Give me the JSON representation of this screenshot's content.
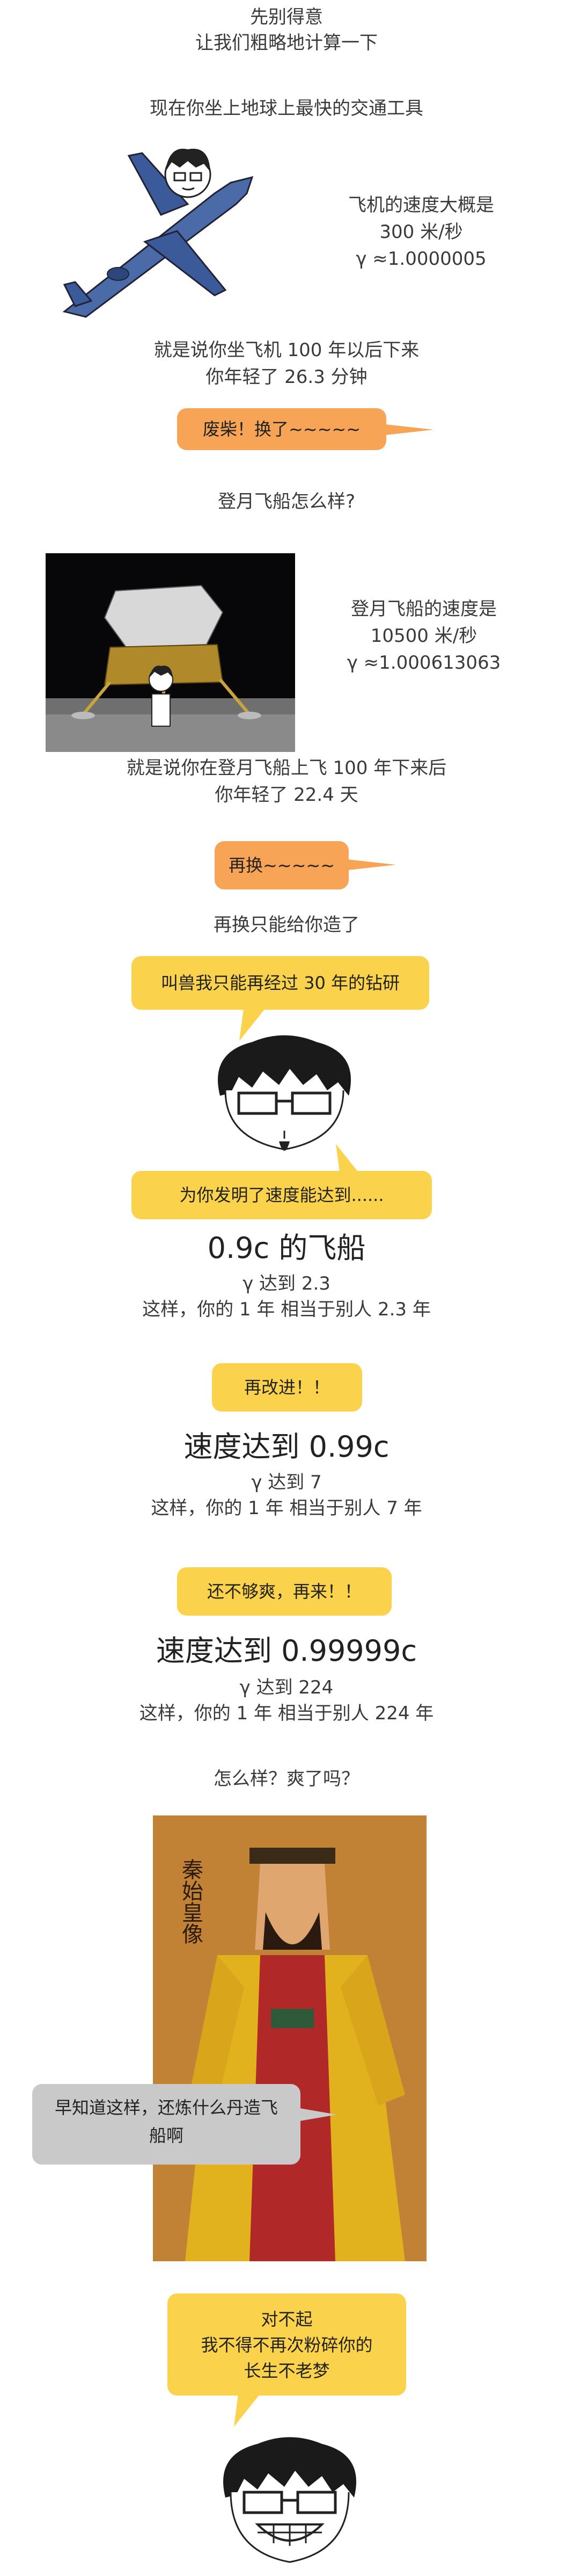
{
  "intro": [
    "先别得意",
    "让我们粗略地计算一下",
    "现在你坐上地球上最快的交通工具"
  ],
  "plane": {
    "speed_line1": "飞机的速度大概是",
    "speed_line2": "300 米/秒",
    "gamma": "γ ≈1.0000005",
    "result1": "就是说你坐飞机 100 年以后下来",
    "result2": "你年轻了 26.3 分钟",
    "bubble": "废柴！换了~~~~~"
  },
  "moon": {
    "question": "登月飞船怎么样?",
    "speed_line1": "登月飞船的速度是",
    "speed_line2": "10500 米/秒",
    "gamma": "γ ≈1.000613063",
    "result1": "就是说你在登月飞船上飞 100 年下来后",
    "result2": "你年轻了 22.4 天",
    "bubble": "再换~~~~~"
  },
  "custom": {
    "line": "再换只能给你造了",
    "bubble1": "叫兽我只能再经过 30 年的钻研",
    "bubble2": "为你发明了速度能达到......"
  },
  "ship1": {
    "title": "0.9c 的飞船",
    "gamma": "γ 达到 2.3",
    "desc": "这样，你的 1 年 相当于别人 2.3 年"
  },
  "improve": {
    "bubble": "再改进！！"
  },
  "ship2": {
    "title": "速度达到 0.99c",
    "gamma": "γ 达到 7",
    "desc": "这样，你的 1 年 相当于别人 7 年"
  },
  "again": {
    "bubble": "还不够爽，再来！！"
  },
  "ship3": {
    "title": "速度达到 0.99999c",
    "gamma": "γ 达到 224",
    "desc": "这样，你的 1 年 相当于别人 224 年"
  },
  "ending": {
    "question": "怎么样？爽了吗？",
    "emperor_bubble": "早知道这样，还炼什么丹造飞船啊",
    "emperor_caption": "秦始皇像",
    "final_bubble": [
      "对不起",
      "我不得不再次粉碎你的",
      "长生不老梦"
    ]
  },
  "colors": {
    "orange": "#f7a456",
    "yellow": "#fbd24b",
    "gray": "#c9c9c9"
  }
}
